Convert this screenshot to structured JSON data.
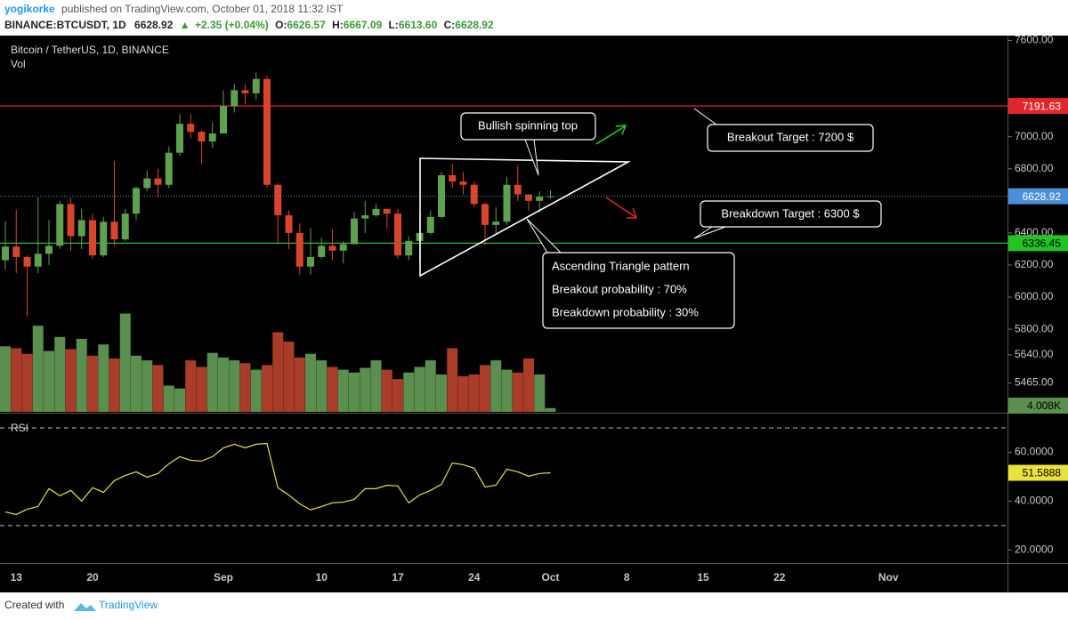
{
  "header": {
    "author": "yogikorke",
    "published": "published on TradingView.com, October 01, 2018 11:32 IST",
    "symbol": "BINANCE:BTCUSDT, 1D",
    "price": "6628.92",
    "arrow": "▲",
    "change": "+2.35 (+0.04%)",
    "open_label": "O:",
    "open": "6626.57",
    "high_label": "H:",
    "high": "6667.09",
    "low_label": "L:",
    "low": "6613.60",
    "close_label": "C:",
    "close": "6628.92"
  },
  "footer": {
    "created": "Created with",
    "brand": "TradingView"
  },
  "chart_data": [
    {
      "type": "candlestick",
      "title": "Bitcoin / TetherUS, 1D, BINANCE",
      "categories": [
        null,
        "13",
        null,
        null,
        null,
        null,
        null,
        null,
        "20",
        null,
        null,
        null,
        null,
        null,
        null,
        null,
        null,
        null,
        null,
        null,
        "Sep",
        null,
        null,
        null,
        null,
        null,
        null,
        null,
        null,
        "10",
        null,
        null,
        null,
        null,
        null,
        null,
        "17",
        null,
        null,
        null,
        null,
        null,
        null,
        "24",
        null,
        null,
        null,
        null,
        null,
        null,
        "Oct",
        null,
        null,
        null,
        null,
        null,
        null,
        "8",
        null,
        null,
        null,
        null,
        null,
        null,
        "15",
        null,
        null,
        null,
        null,
        null,
        null,
        "22",
        null,
        null,
        null,
        null,
        null,
        null,
        null,
        null,
        null,
        "Nov"
      ],
      "open": [
        6230,
        6315,
        6250,
        6190,
        6270,
        6320,
        6580,
        6380,
        6480,
        6260,
        6470,
        6360,
        6520,
        6680,
        6740,
        6700,
        6900,
        7080,
        7030,
        6970,
        7020,
        7190,
        7290,
        7270,
        7360,
        6700,
        6510,
        6400,
        6190,
        6250,
        6320,
        6290,
        6330,
        6490,
        6510,
        6550,
        6520,
        6260,
        6350,
        6400,
        6500,
        6760,
        6720,
        6700,
        6580,
        6450,
        6470,
        6700,
        6640,
        6600,
        6626.57,
        null,
        null,
        null,
        null,
        null,
        null,
        null,
        null,
        null,
        null,
        null,
        null,
        null,
        null,
        null,
        null,
        null,
        null,
        null,
        null,
        null,
        null,
        null,
        null,
        null,
        null,
        null,
        null,
        null,
        null,
        null
      ],
      "high": [
        6475,
        6545,
        6260,
        6620,
        6480,
        6600,
        6620,
        6550,
        6520,
        6500,
        6850,
        6550,
        6690,
        6790,
        6800,
        6940,
        7140,
        7140,
        7040,
        7090,
        7290,
        7330,
        7330,
        7400,
        7380,
        6710,
        6540,
        6460,
        6430,
        6370,
        6420,
        6350,
        6530,
        6600,
        6580,
        6550,
        6550,
        6380,
        6520,
        6540,
        6780,
        6830,
        6780,
        6720,
        6590,
        6560,
        6750,
        6820,
        6640,
        6660,
        6667.09,
        null,
        null,
        null,
        null,
        null,
        null,
        null,
        null,
        null,
        null,
        null,
        null,
        null,
        null,
        null,
        null,
        null,
        null,
        null,
        null,
        null,
        null,
        null,
        null,
        null,
        null,
        null,
        null,
        null,
        null,
        null
      ],
      "low": [
        6170,
        6150,
        5880,
        6150,
        6200,
        6300,
        6290,
        6300,
        6240,
        6250,
        6320,
        6350,
        6480,
        6660,
        6620,
        6680,
        6880,
        6990,
        6830,
        6930,
        7020,
        7150,
        7200,
        7230,
        6680,
        6330,
        6300,
        6140,
        6140,
        6240,
        6230,
        6210,
        6330,
        6400,
        6500,
        6430,
        6240,
        6230,
        6220,
        6390,
        6490,
        6680,
        6640,
        6560,
        6320,
        6390,
        6450,
        6600,
        6540,
        6530,
        6613.6,
        null,
        null,
        null,
        null,
        null,
        null,
        null,
        null,
        null,
        null,
        null,
        null,
        null,
        null,
        null,
        null,
        null,
        null,
        null,
        null,
        null,
        null,
        null,
        null,
        null,
        null,
        null,
        null,
        null,
        null,
        null
      ],
      "close": [
        6315,
        6250,
        6190,
        6270,
        6320,
        6580,
        6380,
        6480,
        6260,
        6470,
        6360,
        6520,
        6680,
        6740,
        6700,
        6900,
        7080,
        7030,
        6970,
        7020,
        7190,
        7290,
        7270,
        7360,
        6700,
        6510,
        6400,
        6190,
        6250,
        6320,
        6290,
        6330,
        6490,
        6510,
        6550,
        6520,
        6260,
        6350,
        6400,
        6500,
        6760,
        6720,
        6700,
        6580,
        6450,
        6470,
        6700,
        6640,
        6600,
        6626,
        6628.92,
        null,
        null,
        null,
        null,
        null,
        null,
        null,
        null,
        null,
        null,
        null,
        null,
        null,
        null,
        null,
        null,
        null,
        null,
        null,
        null,
        null,
        null,
        null,
        null,
        null,
        null,
        null,
        null,
        null,
        null,
        null
      ],
      "up_color": "#5fa150",
      "down_color": "#d9452b",
      "ylim": [
        5285,
        7619
      ],
      "yticks": [
        {
          "value": 7600,
          "label": "7600.00"
        },
        {
          "value": 7000,
          "label": "7000.00"
        },
        {
          "value": 6800,
          "label": "6800.00"
        },
        {
          "value": 6400,
          "label": "6400.00"
        },
        {
          "value": 6200,
          "label": "6200.00"
        },
        {
          "value": 6000,
          "label": "6000.00"
        },
        {
          "value": 5800,
          "label": "5800.00"
        },
        {
          "value": 5640,
          "label": "5640.00"
        },
        {
          "value": 5465,
          "label": "5465.00"
        }
      ],
      "price_lines": [
        {
          "value": 7191.63,
          "color": "#e0272a"
        },
        {
          "value": 6336.45,
          "color": "#22c322"
        }
      ],
      "last_price_color": "#4a90d9",
      "volume": {
        "name": "Vol",
        "up_color": "#5b8f4f",
        "down_color": "#a93d2a",
        "vlim": [
          0,
          400000
        ],
        "values": [
          70000,
          68000,
          62000,
          92000,
          65000,
          80000,
          67000,
          78000,
          60000,
          72000,
          57000,
          105000,
          60000,
          55000,
          50000,
          28000,
          25000,
          55000,
          48000,
          63000,
          58000,
          55000,
          52000,
          45000,
          50000,
          85000,
          75000,
          58000,
          62000,
          55000,
          48000,
          45000,
          42000,
          47000,
          55000,
          45000,
          35000,
          42000,
          48000,
          55000,
          40000,
          68000,
          38000,
          40000,
          50000,
          55000,
          45000,
          42000,
          57000,
          40000,
          4008,
          null,
          null,
          null,
          null,
          null,
          null,
          null,
          null,
          null,
          null,
          null,
          null,
          null,
          null,
          null,
          null,
          null,
          null,
          null,
          null,
          null,
          null,
          null,
          null,
          null,
          null,
          null,
          null,
          null,
          null,
          null
        ],
        "value_labels": [
          null,
          null,
          null,
          null,
          null,
          null,
          null,
          null,
          null,
          null,
          null,
          null,
          null,
          null,
          null,
          null,
          null,
          null,
          null,
          null,
          null,
          null,
          null,
          null,
          null,
          null,
          null,
          null,
          null,
          null,
          null,
          null,
          null,
          null,
          null,
          null,
          null,
          null,
          null,
          null,
          null,
          null,
          null,
          null,
          null,
          null,
          null,
          null,
          null,
          null,
          "4.008K",
          null,
          null,
          null,
          null,
          null,
          null,
          null,
          null,
          null,
          null,
          null,
          null,
          null,
          null,
          null,
          null,
          null,
          null,
          null,
          null,
          null,
          null,
          null,
          null,
          null,
          null,
          null,
          null,
          null,
          null,
          null
        ]
      },
      "annotations": [
        "Bullish spinning top",
        "Breakout Target : 7200 $",
        "Breakdown Target : 6300 $",
        "Ascending Triangle pattern",
        "Breakout probability : 70%",
        "Breakdown probability : 30%"
      ]
    },
    {
      "type": "line",
      "title": "RSI",
      "color": "#e8e23a",
      "values": [
        35.6,
        34.5,
        36.7,
        37.8,
        45.1,
        42.2,
        44.4,
        40,
        45.5,
        43.6,
        48.4,
        50.5,
        52,
        49.8,
        51.3,
        55.3,
        58.2,
        56.7,
        56.4,
        58.2,
        61.8,
        63.3,
        61.8,
        63.3,
        63.6,
        45.5,
        42.5,
        38.9,
        36.4,
        37.8,
        39.3,
        39.6,
        40.7,
        45.1,
        45.1,
        46.5,
        46.2,
        39.3,
        42.5,
        44.4,
        46.9,
        55.6,
        54.9,
        53.5,
        45.8,
        46.5,
        53.1,
        52,
        50.2,
        51.3,
        51.5888,
        null,
        null,
        null,
        null,
        null,
        null,
        null,
        null,
        null,
        null,
        null,
        null,
        null,
        null,
        null,
        null,
        null,
        null,
        null,
        null,
        null,
        null,
        null,
        null,
        null,
        null,
        null,
        null,
        null,
        null,
        null
      ],
      "ylim": [
        15,
        74
      ],
      "yticks": [
        {
          "value": 60,
          "label": "60.0000"
        },
        {
          "value": 40,
          "label": "40.0000"
        },
        {
          "value": 20,
          "label": "20.0000"
        }
      ],
      "levels": [
        70,
        30
      ]
    }
  ]
}
